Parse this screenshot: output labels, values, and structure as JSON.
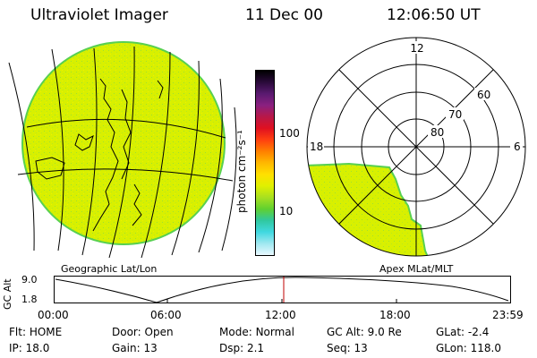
{
  "header": {
    "instrument": "Ultraviolet Imager",
    "date": "11 Dec 00",
    "time": "12:06:50 UT"
  },
  "colorbar": {
    "unit_label": "photon cm⁻²s⁻¹",
    "ticks": [
      "100",
      "10"
    ],
    "colors": [
      "#000000",
      "#2a0a3a",
      "#5a1a70",
      "#8a2080",
      "#b81848",
      "#e01020",
      "#ff4010",
      "#ff8000",
      "#ffb800",
      "#ffe000",
      "#e0f000",
      "#a8e020",
      "#60d030",
      "#30c8a0",
      "#40d8e0",
      "#a0e8f0",
      "#e8f8ff"
    ]
  },
  "left_panel": {
    "caption": "Geographic Lat/Lon",
    "fill_color": "#d8f000",
    "edge_color": "#58d050"
  },
  "right_panel": {
    "caption": "Apex MLat/MLT",
    "mlt_labels": {
      "top": "12",
      "left": "18",
      "right": "6"
    },
    "mlat_labels": [
      "60",
      "70",
      "80"
    ],
    "fill_color": "#d8f000"
  },
  "timeline": {
    "y_axis_label": "GC Alt",
    "y_ticks": [
      "9.0",
      "1.8"
    ],
    "x_ticks": [
      "00:00",
      "06:00",
      "12:00",
      "18:00",
      "23:59"
    ],
    "current_time_color": "#c00000"
  },
  "status": {
    "row1": [
      {
        "label": "Flt:",
        "value": "HOME"
      },
      {
        "label": "Door:",
        "value": "Open"
      },
      {
        "label": "Mode:",
        "value": "Normal"
      },
      {
        "label": "GC Alt:",
        "value": "9.0 Re"
      },
      {
        "label": "GLat:",
        "value": "-2.4"
      }
    ],
    "row2": [
      {
        "label": "IP:",
        "value": "18.0"
      },
      {
        "label": "Gain:",
        "value": "13"
      },
      {
        "label": "Dsp:",
        "value": "2.1"
      },
      {
        "label": "Seq:",
        "value": "13"
      },
      {
        "label": "GLon:",
        "value": "118.0"
      }
    ]
  }
}
